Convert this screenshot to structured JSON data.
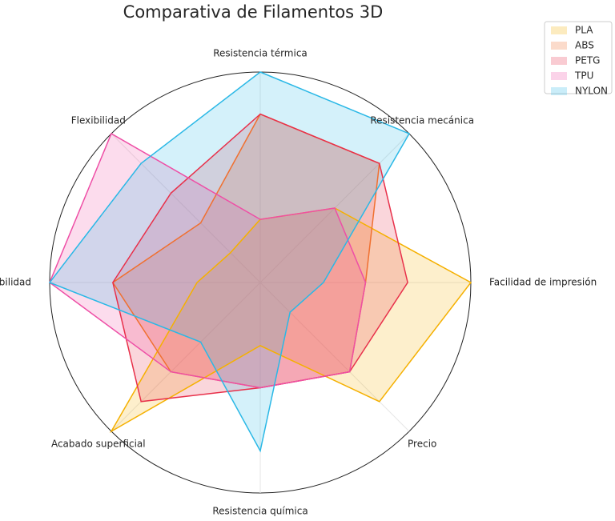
{
  "chart_data": {
    "type": "radar",
    "title": "Comparativa de Filamentos 3D",
    "axes": [
      "Resistencia térmica",
      "Resistencia mecánica",
      "Facilidad de impresión",
      "Precio",
      "Resistencia química",
      "Acabado superficial",
      "Durabilidad",
      "Flexibilidad"
    ],
    "rmax": 10,
    "grid": false,
    "legend_position": "top-right",
    "series": [
      {
        "name": "PLA",
        "color": "#f5b000",
        "values": [
          3,
          5,
          10,
          8,
          3,
          10,
          3,
          2
        ]
      },
      {
        "name": "ABS",
        "color": "#f07030",
        "values": [
          8,
          8,
          5,
          6,
          5,
          6,
          7,
          4
        ]
      },
      {
        "name": "PETG",
        "color": "#e8304a",
        "values": [
          8,
          8,
          7,
          6,
          5,
          8,
          7,
          6
        ]
      },
      {
        "name": "TPU",
        "color": "#ee4fa6",
        "values": [
          3,
          5,
          5,
          6,
          5,
          6,
          10,
          10
        ]
      },
      {
        "name": "NYLON",
        "color": "#2ab8e6",
        "values": [
          10,
          10,
          3,
          2,
          8,
          4,
          10,
          8
        ]
      }
    ]
  }
}
